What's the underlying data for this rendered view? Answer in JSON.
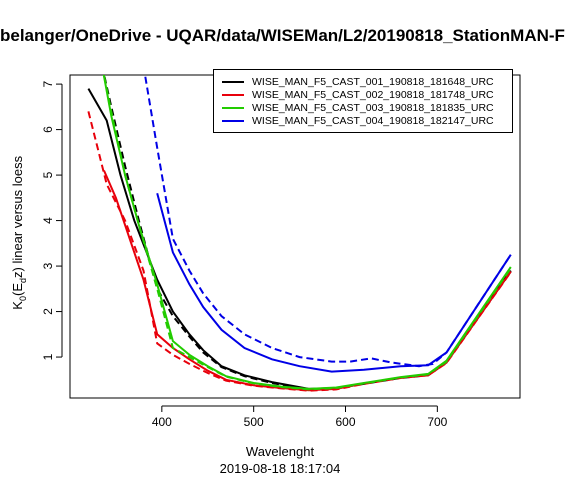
{
  "title": "belanger/OneDrive - UQAR/data/WISEMan/L2/20190818_StationMAN-F",
  "chart_data": {
    "type": "line",
    "title": "belanger/OneDrive - UQAR/data/WISEMan/L2/20190818_StationMAN-F",
    "subtitle": "2019-08-18 18:17:04",
    "xlabel": "Wavelenght",
    "ylabel": "K",
    "ylabel_sub": "0",
    "ylabel_mid": "(E",
    "ylabel_sub2": "d",
    "ylabel_end": "z) linear versus loess",
    "xlim": [
      300,
      790
    ],
    "ylim": [
      0.1,
      7.2
    ],
    "xticks": [
      "400",
      "500",
      "600",
      "700"
    ],
    "yticks": [
      "1",
      "2",
      "3",
      "4",
      "5",
      "6",
      "7"
    ],
    "legend_position": "top-right",
    "series": [
      {
        "name": "WISE_MAN_F5_CAST_001_190818_181648_URC",
        "color": "#000000",
        "linear": [
          [
            320,
            6.9
          ],
          [
            340,
            6.2
          ],
          [
            355,
            5.0
          ],
          [
            370,
            4.0
          ],
          [
            395,
            2.7
          ],
          [
            412,
            2.0
          ],
          [
            430,
            1.5
          ],
          [
            445,
            1.15
          ],
          [
            465,
            0.8
          ],
          [
            490,
            0.6
          ],
          [
            520,
            0.45
          ],
          [
            560,
            0.3
          ],
          [
            590,
            0.32
          ],
          [
            620,
            0.42
          ],
          [
            660,
            0.55
          ],
          [
            690,
            0.62
          ],
          [
            710,
            0.9
          ],
          [
            780,
            2.9
          ]
        ],
        "loess": [
          [
            335,
            7.4
          ],
          [
            345,
            6.5
          ],
          [
            360,
            5.2
          ],
          [
            375,
            4.0
          ],
          [
            395,
            2.5
          ],
          [
            412,
            1.9
          ],
          [
            430,
            1.45
          ],
          [
            445,
            1.1
          ],
          [
            465,
            0.78
          ],
          [
            490,
            0.58
          ],
          [
            520,
            0.43
          ],
          [
            560,
            0.29
          ],
          [
            590,
            0.31
          ],
          [
            620,
            0.41
          ],
          [
            660,
            0.54
          ],
          [
            690,
            0.6
          ],
          [
            710,
            0.88
          ],
          [
            780,
            2.88
          ]
        ]
      },
      {
        "name": "WISE_MAN_F5_CAST_002_190818_181748_URC",
        "color": "#e8000b",
        "linear": [
          [
            337,
            5.1
          ],
          [
            350,
            4.5
          ],
          [
            365,
            3.6
          ],
          [
            380,
            2.7
          ],
          [
            395,
            1.5
          ],
          [
            412,
            1.2
          ],
          [
            430,
            0.95
          ],
          [
            450,
            0.7
          ],
          [
            470,
            0.5
          ],
          [
            500,
            0.38
          ],
          [
            530,
            0.32
          ],
          [
            560,
            0.27
          ],
          [
            590,
            0.3
          ],
          [
            620,
            0.42
          ],
          [
            660,
            0.55
          ],
          [
            690,
            0.6
          ],
          [
            710,
            0.88
          ],
          [
            780,
            2.88
          ]
        ],
        "loess": [
          [
            320,
            6.4
          ],
          [
            330,
            5.6
          ],
          [
            340,
            4.8
          ],
          [
            360,
            4.0
          ],
          [
            380,
            2.9
          ],
          [
            395,
            1.3
          ],
          [
            412,
            1.05
          ],
          [
            430,
            0.85
          ],
          [
            450,
            0.65
          ],
          [
            470,
            0.48
          ],
          [
            500,
            0.37
          ],
          [
            530,
            0.31
          ],
          [
            560,
            0.26
          ],
          [
            590,
            0.29
          ],
          [
            620,
            0.41
          ],
          [
            660,
            0.54
          ],
          [
            690,
            0.6
          ],
          [
            710,
            0.87
          ],
          [
            780,
            2.87
          ]
        ]
      },
      {
        "name": "WISE_MAN_F5_CAST_003_190818_181835_URC",
        "color": "#22cc00",
        "linear": [
          [
            335,
            7.4
          ],
          [
            345,
            6.3
          ],
          [
            360,
            5.0
          ],
          [
            375,
            3.9
          ],
          [
            395,
            2.6
          ],
          [
            412,
            1.35
          ],
          [
            430,
            1.05
          ],
          [
            450,
            0.8
          ],
          [
            470,
            0.58
          ],
          [
            500,
            0.43
          ],
          [
            530,
            0.35
          ],
          [
            560,
            0.3
          ],
          [
            590,
            0.33
          ],
          [
            620,
            0.43
          ],
          [
            660,
            0.56
          ],
          [
            690,
            0.63
          ],
          [
            710,
            0.92
          ],
          [
            780,
            2.98
          ]
        ],
        "loess": [
          [
            335,
            7.4
          ],
          [
            345,
            6.4
          ],
          [
            360,
            5.0
          ],
          [
            375,
            3.9
          ],
          [
            395,
            2.5
          ],
          [
            412,
            1.2
          ],
          [
            430,
            1.0
          ],
          [
            450,
            0.78
          ],
          [
            470,
            0.57
          ],
          [
            500,
            0.42
          ],
          [
            530,
            0.34
          ],
          [
            560,
            0.29
          ],
          [
            590,
            0.32
          ],
          [
            620,
            0.42
          ],
          [
            660,
            0.55
          ],
          [
            690,
            0.62
          ],
          [
            710,
            0.9
          ],
          [
            780,
            2.95
          ]
        ]
      },
      {
        "name": "WISE_MAN_F5_CAST_004_190818_182147_URC",
        "color": "#0000e6",
        "linear": [
          [
            395,
            4.6
          ],
          [
            412,
            3.3
          ],
          [
            430,
            2.6
          ],
          [
            445,
            2.1
          ],
          [
            465,
            1.6
          ],
          [
            490,
            1.2
          ],
          [
            520,
            0.95
          ],
          [
            550,
            0.8
          ],
          [
            585,
            0.68
          ],
          [
            620,
            0.72
          ],
          [
            660,
            0.8
          ],
          [
            690,
            0.82
          ],
          [
            710,
            1.1
          ],
          [
            780,
            3.25
          ]
        ],
        "loess": [
          [
            380,
            7.4
          ],
          [
            395,
            5.6
          ],
          [
            412,
            3.6
          ],
          [
            430,
            2.9
          ],
          [
            445,
            2.4
          ],
          [
            465,
            1.9
          ],
          [
            490,
            1.5
          ],
          [
            520,
            1.2
          ],
          [
            550,
            1.0
          ],
          [
            585,
            0.9
          ],
          [
            605,
            0.9
          ],
          [
            628,
            0.97
          ],
          [
            650,
            0.88
          ],
          [
            680,
            0.8
          ],
          [
            695,
            0.85
          ],
          [
            710,
            1.1
          ],
          [
            780,
            3.25
          ]
        ]
      }
    ]
  }
}
